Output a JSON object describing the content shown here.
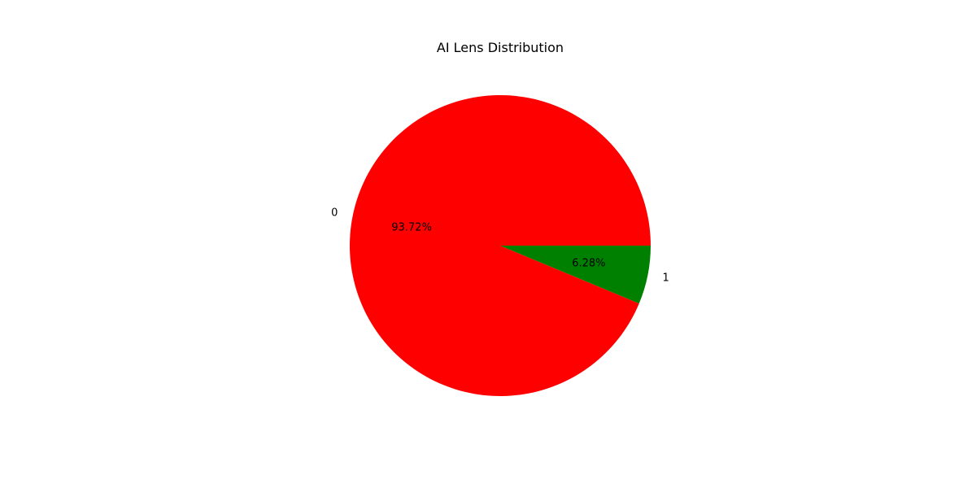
{
  "chart_data": {
    "type": "pie",
    "title": "AI Lens Distribution",
    "categories": [
      "0",
      "1"
    ],
    "values": [
      93.72,
      6.28
    ],
    "percent_labels": [
      "93.72%",
      "6.28%"
    ],
    "colors": [
      "#ff0000",
      "#008000"
    ],
    "start_angle": "counterclockwise from 3 o'clock",
    "legend": "none"
  }
}
